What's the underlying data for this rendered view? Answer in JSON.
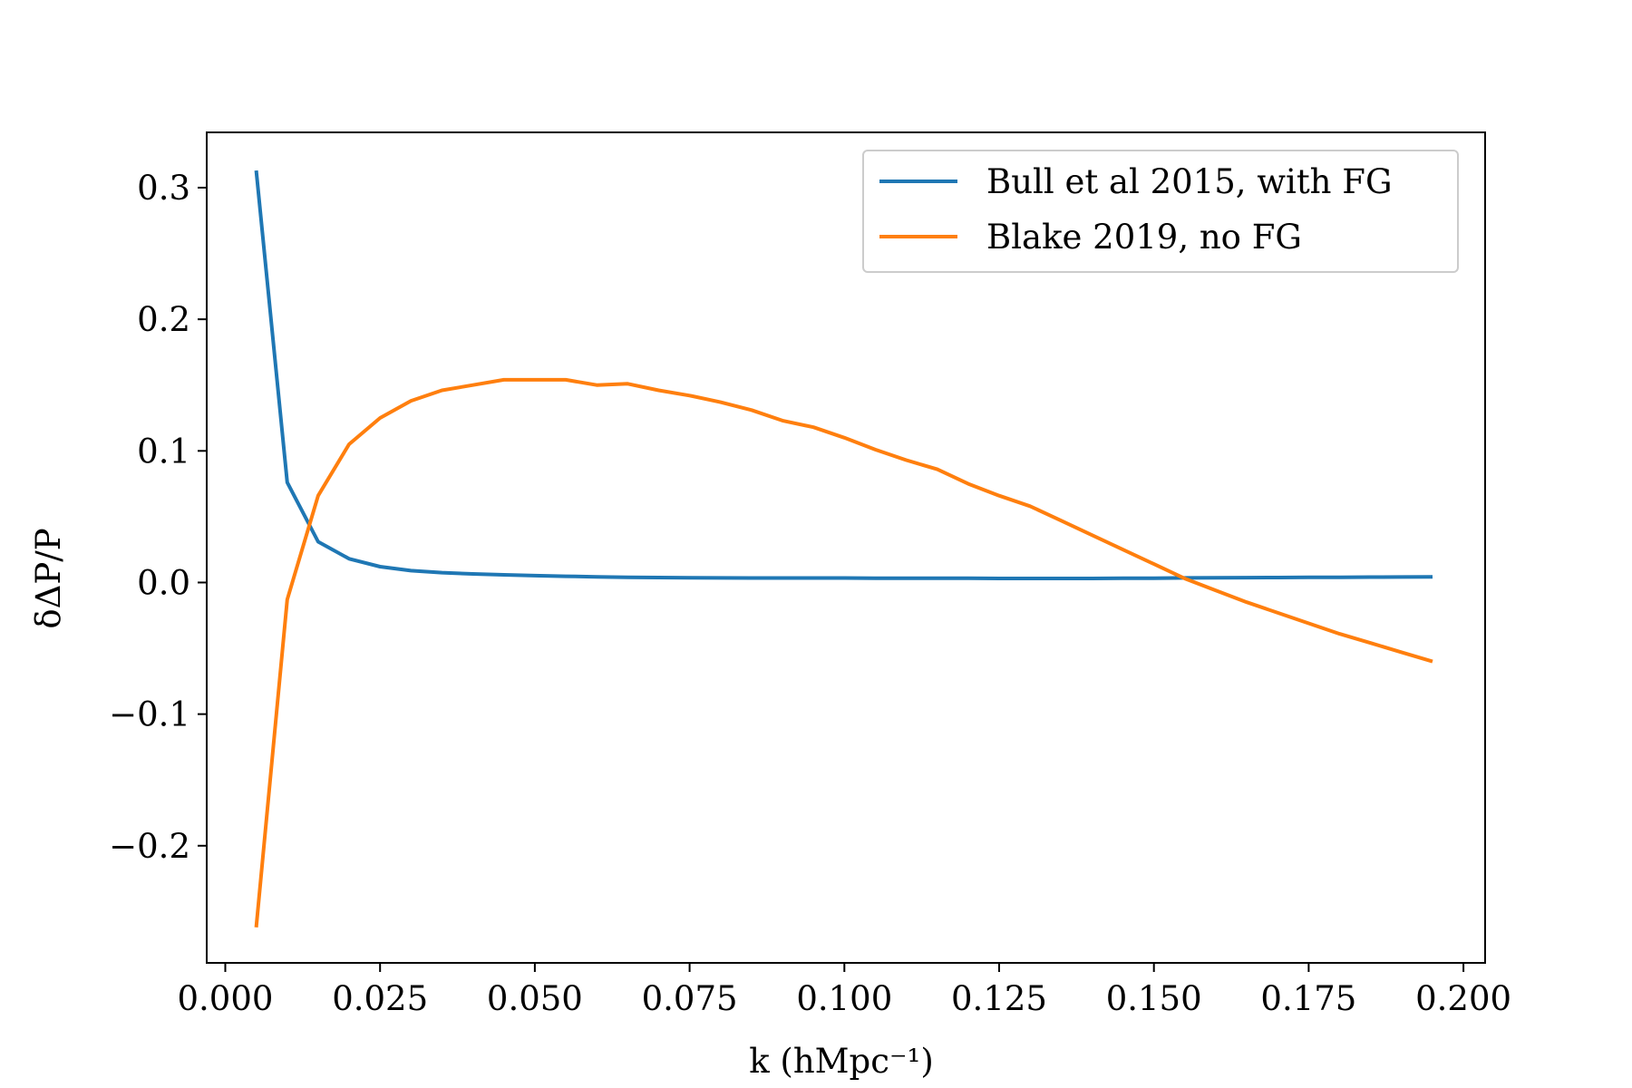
{
  "chart_data": {
    "type": "line",
    "xlabel": "k (hMpc⁻¹)",
    "ylabel": "δΔP/P",
    "xlim": [
      -0.003,
      0.2035
    ],
    "ylim": [
      -0.289,
      0.342
    ],
    "x_ticks": [
      0.0,
      0.025,
      0.05,
      0.075,
      0.1,
      0.125,
      0.15,
      0.175,
      0.2
    ],
    "x_tick_labels": [
      "0.000",
      "0.025",
      "0.050",
      "0.075",
      "0.100",
      "0.125",
      "0.150",
      "0.175",
      "0.200"
    ],
    "y_ticks": [
      -0.2,
      -0.1,
      0.0,
      0.1,
      0.2,
      0.3
    ],
    "y_tick_labels": [
      "−0.2",
      "−0.1",
      "0.0",
      "0.1",
      "0.2",
      "0.3"
    ],
    "grid": false,
    "legend_position": "top-right",
    "series": [
      {
        "name": "Bull et al 2015, with FG",
        "color": "#1f77b4",
        "x": [
          0.005,
          0.01,
          0.015,
          0.02,
          0.025,
          0.03,
          0.035,
          0.04,
          0.045,
          0.05,
          0.055,
          0.06,
          0.065,
          0.07,
          0.075,
          0.08,
          0.085,
          0.09,
          0.095,
          0.1,
          0.105,
          0.11,
          0.115,
          0.12,
          0.125,
          0.13,
          0.135,
          0.14,
          0.145,
          0.15,
          0.155,
          0.16,
          0.165,
          0.17,
          0.175,
          0.18,
          0.185,
          0.19,
          0.195
        ],
        "y": [
          0.313,
          0.076,
          0.031,
          0.018,
          0.012,
          0.009,
          0.0075,
          0.0065,
          0.0058,
          0.0052,
          0.0047,
          0.0043,
          0.004,
          0.0038,
          0.0036,
          0.0035,
          0.0034,
          0.0034,
          0.0034,
          0.0034,
          0.0033,
          0.0033,
          0.0032,
          0.0032,
          0.0031,
          0.0031,
          0.0031,
          0.0031,
          0.0032,
          0.0033,
          0.0035,
          0.0036,
          0.0037,
          0.0038,
          0.0039,
          0.004,
          0.0041,
          0.0042,
          0.0043
        ]
      },
      {
        "name": "Blake 2019, no FG",
        "color": "#ff7f0e",
        "x": [
          0.005,
          0.01,
          0.015,
          0.02,
          0.025,
          0.03,
          0.035,
          0.04,
          0.045,
          0.05,
          0.055,
          0.06,
          0.065,
          0.07,
          0.075,
          0.08,
          0.085,
          0.09,
          0.095,
          0.1,
          0.105,
          0.11,
          0.115,
          0.12,
          0.125,
          0.13,
          0.135,
          0.14,
          0.145,
          0.15,
          0.155,
          0.16,
          0.165,
          0.17,
          0.175,
          0.18,
          0.185,
          0.19,
          0.195
        ],
        "y": [
          -0.262,
          -0.013,
          0.066,
          0.105,
          0.125,
          0.138,
          0.146,
          0.15,
          0.154,
          0.154,
          0.154,
          0.15,
          0.151,
          0.146,
          0.142,
          0.137,
          0.131,
          0.123,
          0.118,
          0.11,
          0.101,
          0.093,
          0.086,
          0.075,
          0.066,
          0.058,
          0.047,
          0.036,
          0.025,
          0.014,
          0.003,
          -0.006,
          -0.015,
          -0.023,
          -0.031,
          -0.039,
          -0.046,
          -0.053,
          -0.06
        ]
      }
    ]
  }
}
